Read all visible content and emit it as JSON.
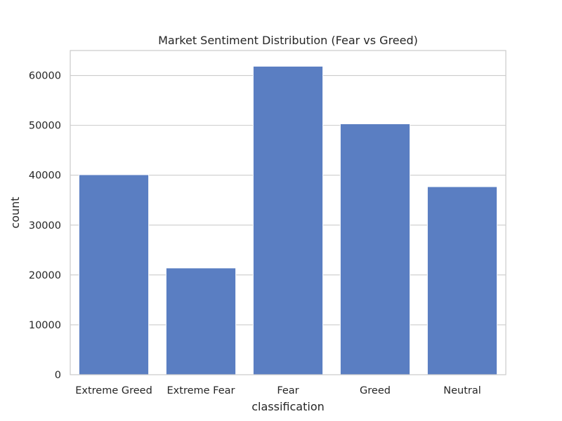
{
  "chart_data": {
    "type": "bar",
    "title": "Market Sentiment Distribution (Fear vs Greed)",
    "xlabel": "classification",
    "ylabel": "count",
    "categories": [
      "Extreme Greed",
      "Extreme Fear",
      "Fear",
      "Greed",
      "Neutral"
    ],
    "values": [
      40100,
      21400,
      61850,
      50300,
      37700
    ],
    "ylim": [
      0,
      65000
    ],
    "yticks": [
      0,
      10000,
      20000,
      30000,
      40000,
      50000,
      60000
    ],
    "grid": "y",
    "bar_color": "#5a7ec2",
    "grid_color": "#cccccc",
    "spine_color": "#cccccc"
  }
}
